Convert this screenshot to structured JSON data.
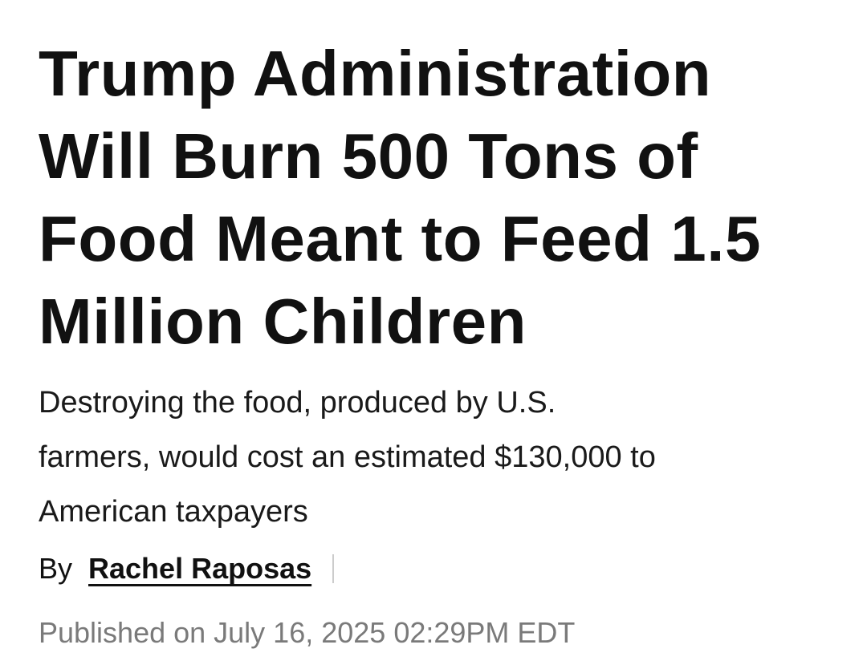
{
  "headline": {
    "lines": [
      "Trump Administration",
      "Will Burn 500 Tons of",
      "Food Meant to Feed 1.5",
      "Million Children"
    ]
  },
  "subheadline": {
    "lines": [
      "Destroying the food, produced by U.S.",
      "farmers, would cost an estimated $130,000 to",
      "American taxpayers"
    ]
  },
  "byline": {
    "prefix": "By",
    "author": "Rachel Raposas"
  },
  "published": "Published on July 16, 2025 02:29PM EDT"
}
